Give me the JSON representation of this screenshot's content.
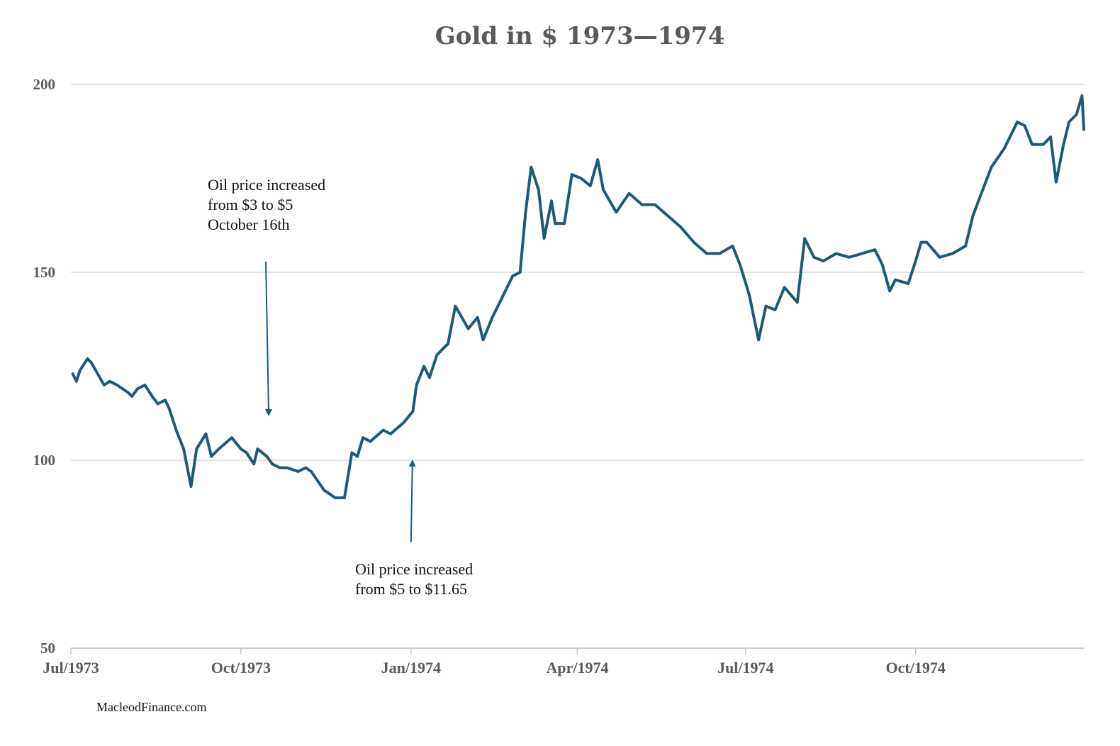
{
  "chart_data": {
    "type": "line",
    "title": "Gold in $ 1973—1974",
    "xlabel": "",
    "ylabel": "",
    "ylim": [
      50,
      200
    ],
    "yticks": [
      50,
      100,
      150,
      200
    ],
    "xticks": [
      "Jul/1973",
      "Oct/1973",
      "Jan/1974",
      "Apr/1974",
      "Jul/1974",
      "Oct/1974"
    ],
    "grid": true,
    "line_color": "#1d5a7a",
    "series": [
      {
        "x": [
          "1973-07-02",
          "1973-07-04",
          "1973-07-06",
          "1973-07-10",
          "1973-07-12",
          "1973-07-19",
          "1973-07-22",
          "1973-07-26",
          "1973-08-01",
          "1973-08-03",
          "1973-08-06",
          "1973-08-10",
          "1973-08-14",
          "1973-08-17",
          "1973-08-21",
          "1973-08-23",
          "1973-08-27",
          "1973-08-31",
          "1973-09-04",
          "1973-09-07",
          "1973-09-12",
          "1973-09-15",
          "1973-09-19",
          "1973-09-26",
          "1973-10-01",
          "1973-10-04",
          "1973-10-08",
          "1973-10-10",
          "1973-10-15",
          "1973-10-18",
          "1973-10-22",
          "1973-10-26",
          "1973-11-01",
          "1973-11-05",
          "1973-11-08",
          "1973-11-15",
          "1973-11-21",
          "1973-11-26",
          "1973-11-30",
          "1973-12-03",
          "1973-12-06",
          "1973-12-10",
          "1973-12-17",
          "1973-12-21",
          "1973-12-28",
          "1974-01-02",
          "1974-01-04",
          "1974-01-08",
          "1974-01-11",
          "1974-01-15",
          "1974-01-21",
          "1974-01-25",
          "1974-02-01",
          "1974-02-06",
          "1974-02-09",
          "1974-02-14",
          "1974-02-19",
          "1974-02-25",
          "1974-03-01",
          "1974-03-04",
          "1974-03-07",
          "1974-03-11",
          "1974-03-14",
          "1974-03-18",
          "1974-03-20",
          "1974-03-25",
          "1974-03-29",
          "1974-04-03",
          "1974-04-08",
          "1974-04-12",
          "1974-04-15",
          "1974-04-22",
          "1974-04-29",
          "1974-05-06",
          "1974-05-13",
          "1974-05-20",
          "1974-05-27",
          "1974-06-03",
          "1974-06-10",
          "1974-06-17",
          "1974-06-24",
          "1974-06-28",
          "1974-07-03",
          "1974-07-08",
          "1974-07-12",
          "1974-07-17",
          "1974-07-22",
          "1974-07-29",
          "1974-08-02",
          "1974-08-07",
          "1974-08-12",
          "1974-08-19",
          "1974-08-26",
          "1974-09-02",
          "1974-09-09",
          "1974-09-13",
          "1974-09-17",
          "1974-09-20",
          "1974-09-27",
          "1974-10-01",
          "1974-10-04",
          "1974-10-07",
          "1974-10-14",
          "1974-10-21",
          "1974-10-28",
          "1974-11-01",
          "1974-11-04",
          "1974-11-11",
          "1974-11-18",
          "1974-11-25",
          "1974-11-29",
          "1974-12-03",
          "1974-12-09",
          "1974-12-13",
          "1974-12-16",
          "1974-12-20",
          "1974-12-23",
          "1974-12-27",
          "1974-12-30",
          "1974-12-31"
        ],
        "values": [
          123,
          121,
          124,
          127,
          126,
          120,
          121,
          120,
          118,
          117,
          119,
          120,
          117,
          115,
          116,
          114,
          108,
          103,
          93,
          103,
          107,
          101,
          103,
          106,
          103,
          102,
          99,
          103,
          101,
          99,
          98,
          98,
          97,
          98,
          97,
          92,
          90,
          90,
          102,
          101,
          106,
          105,
          108,
          107,
          110,
          113,
          120,
          125,
          122,
          128,
          131,
          141,
          135,
          138,
          132,
          138,
          143,
          149,
          150,
          166,
          178,
          172,
          159,
          169,
          163,
          163,
          176,
          175,
          173,
          180,
          172,
          166,
          171,
          168,
          168,
          165,
          162,
          158,
          155,
          155,
          157,
          152,
          144,
          132,
          141,
          140,
          146,
          142,
          159,
          154,
          153,
          155,
          154,
          155,
          156,
          152,
          145,
          148,
          147,
          153,
          158,
          158,
          154,
          155,
          157,
          165,
          169,
          178,
          183,
          190,
          189,
          184,
          184,
          186,
          174,
          184,
          190,
          192,
          197,
          188
        ]
      }
    ],
    "annotations": [
      {
        "lines": [
          "Oil price increased",
          "from $3 to $5",
          "October 16th"
        ],
        "target_date": "1973-10-16",
        "target_value": 110
      },
      {
        "lines": [
          "Oil price increased",
          "from $5 to $11.65"
        ],
        "target_date": "1974-01-01",
        "target_value": 100
      }
    ],
    "source": "MacleodFinance.com"
  }
}
